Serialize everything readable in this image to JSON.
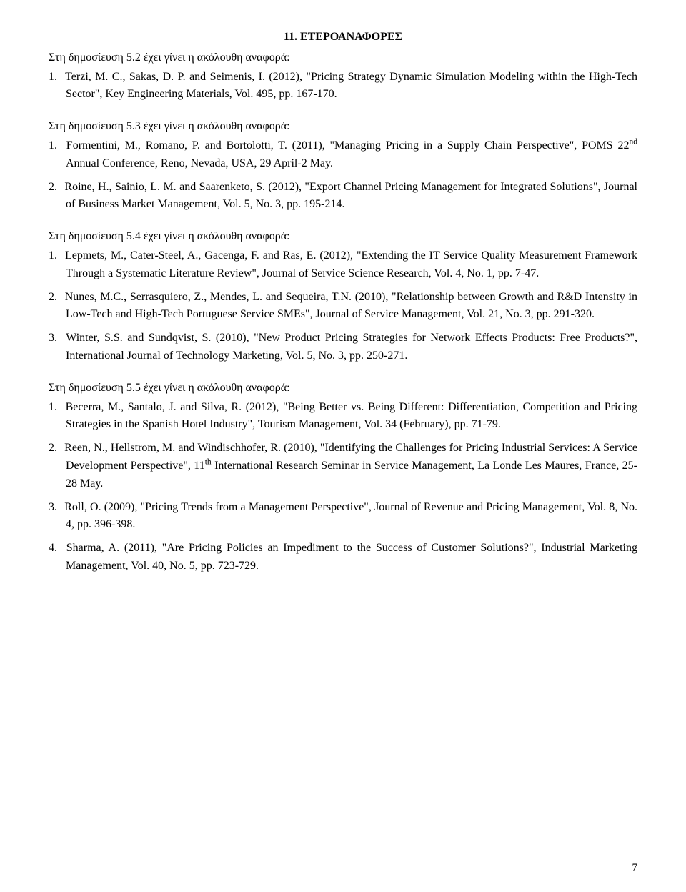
{
  "font_family": "Times New Roman",
  "base_fontsize_pt": 12,
  "text_color": "#000000",
  "background_color": "#ffffff",
  "page_number": "7",
  "section_title": "11. ΕΤΕΡΟΑΝΑΦΟΡΕΣ",
  "groups": [
    {
      "intro": "Στη δημοσίευση 5.2 έχει γίνει η ακόλουθη αναφορά:",
      "items": [
        {
          "n": "1.",
          "html": "Terzi, M. C., Sakas, D. P. and Seimenis, I. (2012), \"Pricing Strategy Dynamic Simulation Modeling within the High-Tech Sector\", Key Engineering Materials, Vol. 495, pp. 167-170."
        }
      ]
    },
    {
      "intro": "Στη δημοσίευση 5.3 έχει γίνει η ακόλουθη αναφορά:",
      "items": [
        {
          "n": "1.",
          "html": "Formentini, M., Romano, P. and Bortolotti, T. (2011), \"Managing Pricing in a Supply Chain Perspective\", POMS 22<sup>nd</sup> Annual Conference, Reno, Nevada, USA, 29 April-2 May."
        },
        {
          "n": "2.",
          "html": "Roine, H., Sainio, L. M. and Saarenketo, S. (2012), \"Export Channel Pricing Management for Integrated Solutions\", Journal of Business Market Management, Vol. 5, No. 3, pp. 195-214."
        }
      ]
    },
    {
      "intro": "Στη δημοσίευση 5.4 έχει γίνει η ακόλουθη αναφορά:",
      "items": [
        {
          "n": "1.",
          "html": "Lepmets, M., Cater-Steel, A., Gacenga, F. and Ras, E. (2012), \"Extending the IT Service Quality Measurement Framework Through a Systematic Literature Review\", Journal of Service Science Research, Vol. 4, No. 1, pp. 7-47."
        },
        {
          "n": "2.",
          "html": "Nunes, M.C., Serrasquiero, Z., Mendes, L. and Sequeira, T.N. (2010), \"Relationship between Growth and R&amp;D Intensity in Low-Tech and High-Tech Portuguese Service SMEs\", Journal of Service Management, Vol. 21, No. 3, pp. 291-320."
        },
        {
          "n": "3.",
          "html": "Winter, S.S. and Sundqvist, S. (2010), \"New Product Pricing Strategies for Network Effects Products: Free Products?\", International Journal of Technology Marketing, Vol. 5, No. 3, pp. 250-271."
        }
      ]
    },
    {
      "intro": "Στη δημοσίευση 5.5 έχει γίνει η ακόλουθη αναφορά:",
      "items": [
        {
          "n": "1.",
          "html": "Becerra, M., Santalo, J. and Silva, R. (2012), \"Being Better vs. Being Different: Differentiation, Competition and Pricing Strategies in the Spanish Hotel Industry\", Tourism Management, Vol. 34 (February), pp. 71-79."
        },
        {
          "n": "2.",
          "html": "Reen, N., Hellstrom, M. and Windischhofer, R. (2010), \"Identifying the Challenges for Pricing Industrial Services: A Service Development Perspective\", 11<sup>th</sup> International Research Seminar in Service Management, La Londe Les Maures, France, 25-28 May."
        },
        {
          "n": "3.",
          "html": "Roll, O. (2009), \"Pricing Trends from a Management Perspective\", Journal of Revenue and Pricing Management, Vol. 8, No. 4, pp. 396-398."
        },
        {
          "n": "4.",
          "html": "Sharma, A. (2011), \"Are Pricing Policies an Impediment to the Success of Customer Solutions?\", Industrial Marketing Management, Vol. 40, No. 5, pp. 723-729."
        }
      ]
    }
  ]
}
